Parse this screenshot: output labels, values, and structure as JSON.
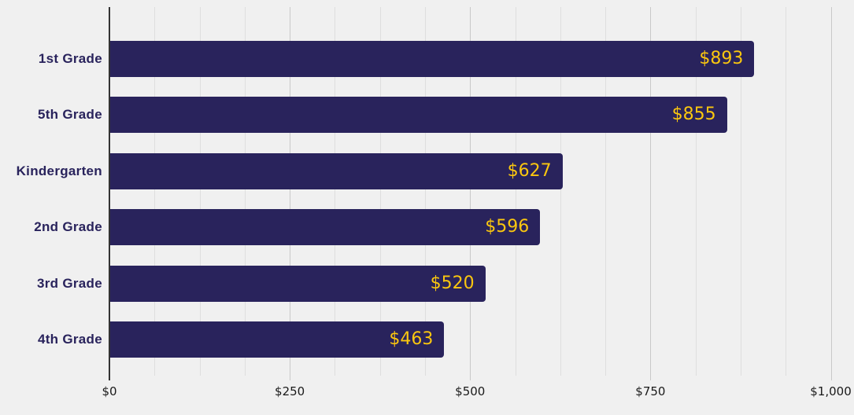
{
  "chart_data": {
    "type": "bar",
    "orientation": "horizontal",
    "title": "",
    "xlabel": "",
    "ylabel": "",
    "categories": [
      "1st Grade",
      "5th Grade",
      "Kindergarten",
      "2nd Grade",
      "3rd Grade",
      "4th Grade"
    ],
    "values": [
      893,
      855,
      627,
      596,
      520,
      463
    ],
    "value_labels": [
      "$893",
      "$855",
      "$627",
      "$596",
      "$520",
      "$463"
    ],
    "xlim": [
      0,
      1000
    ],
    "x_tick_values": [
      0,
      250,
      500,
      750,
      1000
    ],
    "x_tick_labels": [
      "$0",
      "$250",
      "$500",
      "$750",
      "$1,000"
    ],
    "minor_grid_step": 62.5,
    "grid": true,
    "legend": false
  },
  "colors": {
    "background": "#F0F0F0",
    "bar": "#29235C",
    "value_label": "#FBC70F",
    "category_label": "#29235C",
    "minor_gridline": "#DEDEDE",
    "major_gridline": "#C9C9C9",
    "axis_line": "#333333",
    "tick_label": "#1A1A1A"
  }
}
